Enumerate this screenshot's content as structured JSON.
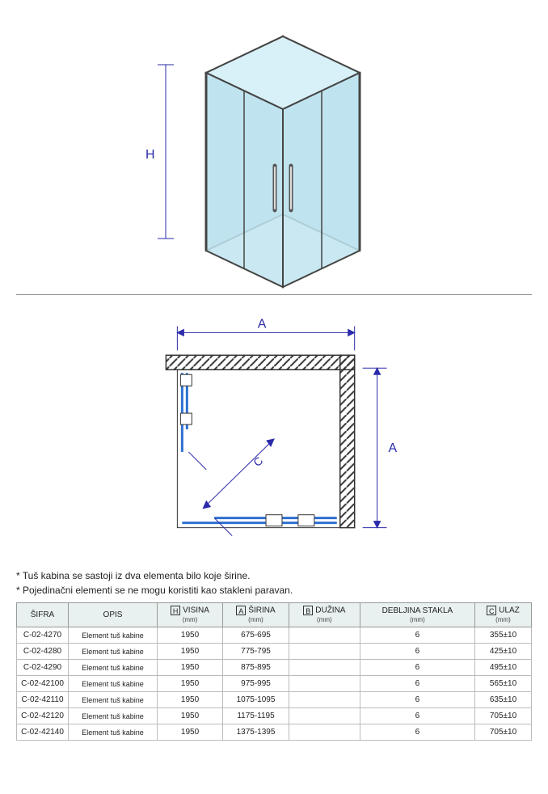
{
  "diagram": {
    "iso": {
      "H_label": "H"
    },
    "plan": {
      "A_label": "A",
      "A_label_right": "A",
      "C_label": "C"
    },
    "colors": {
      "dim_label": "#2a2aaa",
      "dim_line": "#2a2aaa",
      "glass": "#bfe4ef",
      "glass_edge": "#5aa9bf",
      "frame": "#444444",
      "hatch": "#333333",
      "plan_blue": "#2f6fd0"
    }
  },
  "notes": {
    "line1": "* Tuš kabina se sastoji iz dva elementa bilo koje širine.",
    "line2": "* Pojedinačni elementi  se ne mogu koristiti kao stakleni paravan."
  },
  "table": {
    "headers": {
      "sifra": "ŠIFRA",
      "opis": "OPIS",
      "visina": {
        "box": "H",
        "label": "VISINA",
        "unit": "(mm)"
      },
      "sirina": {
        "box": "A",
        "label": "ŠIRINA",
        "unit": "(mm)"
      },
      "duzina": {
        "box": "B",
        "label": "DUŽINA",
        "unit": "(mm)"
      },
      "debljina": {
        "label": "DEBLJINA STAKLA",
        "unit": "(mm)"
      },
      "ulaz": {
        "box": "C",
        "label": "ULAZ",
        "unit": "(mm)"
      }
    },
    "rows": [
      {
        "sifra": "C-02-4270",
        "opis": "Element tuš kabine",
        "visina": "1950",
        "sirina": "675-695",
        "duzina": "",
        "debljina": "6",
        "ulaz": "355±10"
      },
      {
        "sifra": "C-02-4280",
        "opis": "Element tuš kabine",
        "visina": "1950",
        "sirina": "775-795",
        "duzina": "",
        "debljina": "6",
        "ulaz": "425±10"
      },
      {
        "sifra": "C-02-4290",
        "opis": "Element tuš kabine",
        "visina": "1950",
        "sirina": "875-895",
        "duzina": "",
        "debljina": "6",
        "ulaz": "495±10"
      },
      {
        "sifra": "C-02-42100",
        "opis": "Element tuš kabine",
        "visina": "1950",
        "sirina": "975-995",
        "duzina": "",
        "debljina": "6",
        "ulaz": "565±10"
      },
      {
        "sifra": "C-02-42110",
        "opis": "Element tuš kabine",
        "visina": "1950",
        "sirina": "1075-1095",
        "duzina": "",
        "debljina": "6",
        "ulaz": "635±10"
      },
      {
        "sifra": "C-02-42120",
        "opis": "Element tuš kabine",
        "visina": "1950",
        "sirina": "1175-1195",
        "duzina": "",
        "debljina": "6",
        "ulaz": "705±10"
      },
      {
        "sifra": "C-02-42140",
        "opis": "Element tuš kabine",
        "visina": "1950",
        "sirina": "1375-1395",
        "duzina": "",
        "debljina": "6",
        "ulaz": "705±10"
      }
    ]
  }
}
